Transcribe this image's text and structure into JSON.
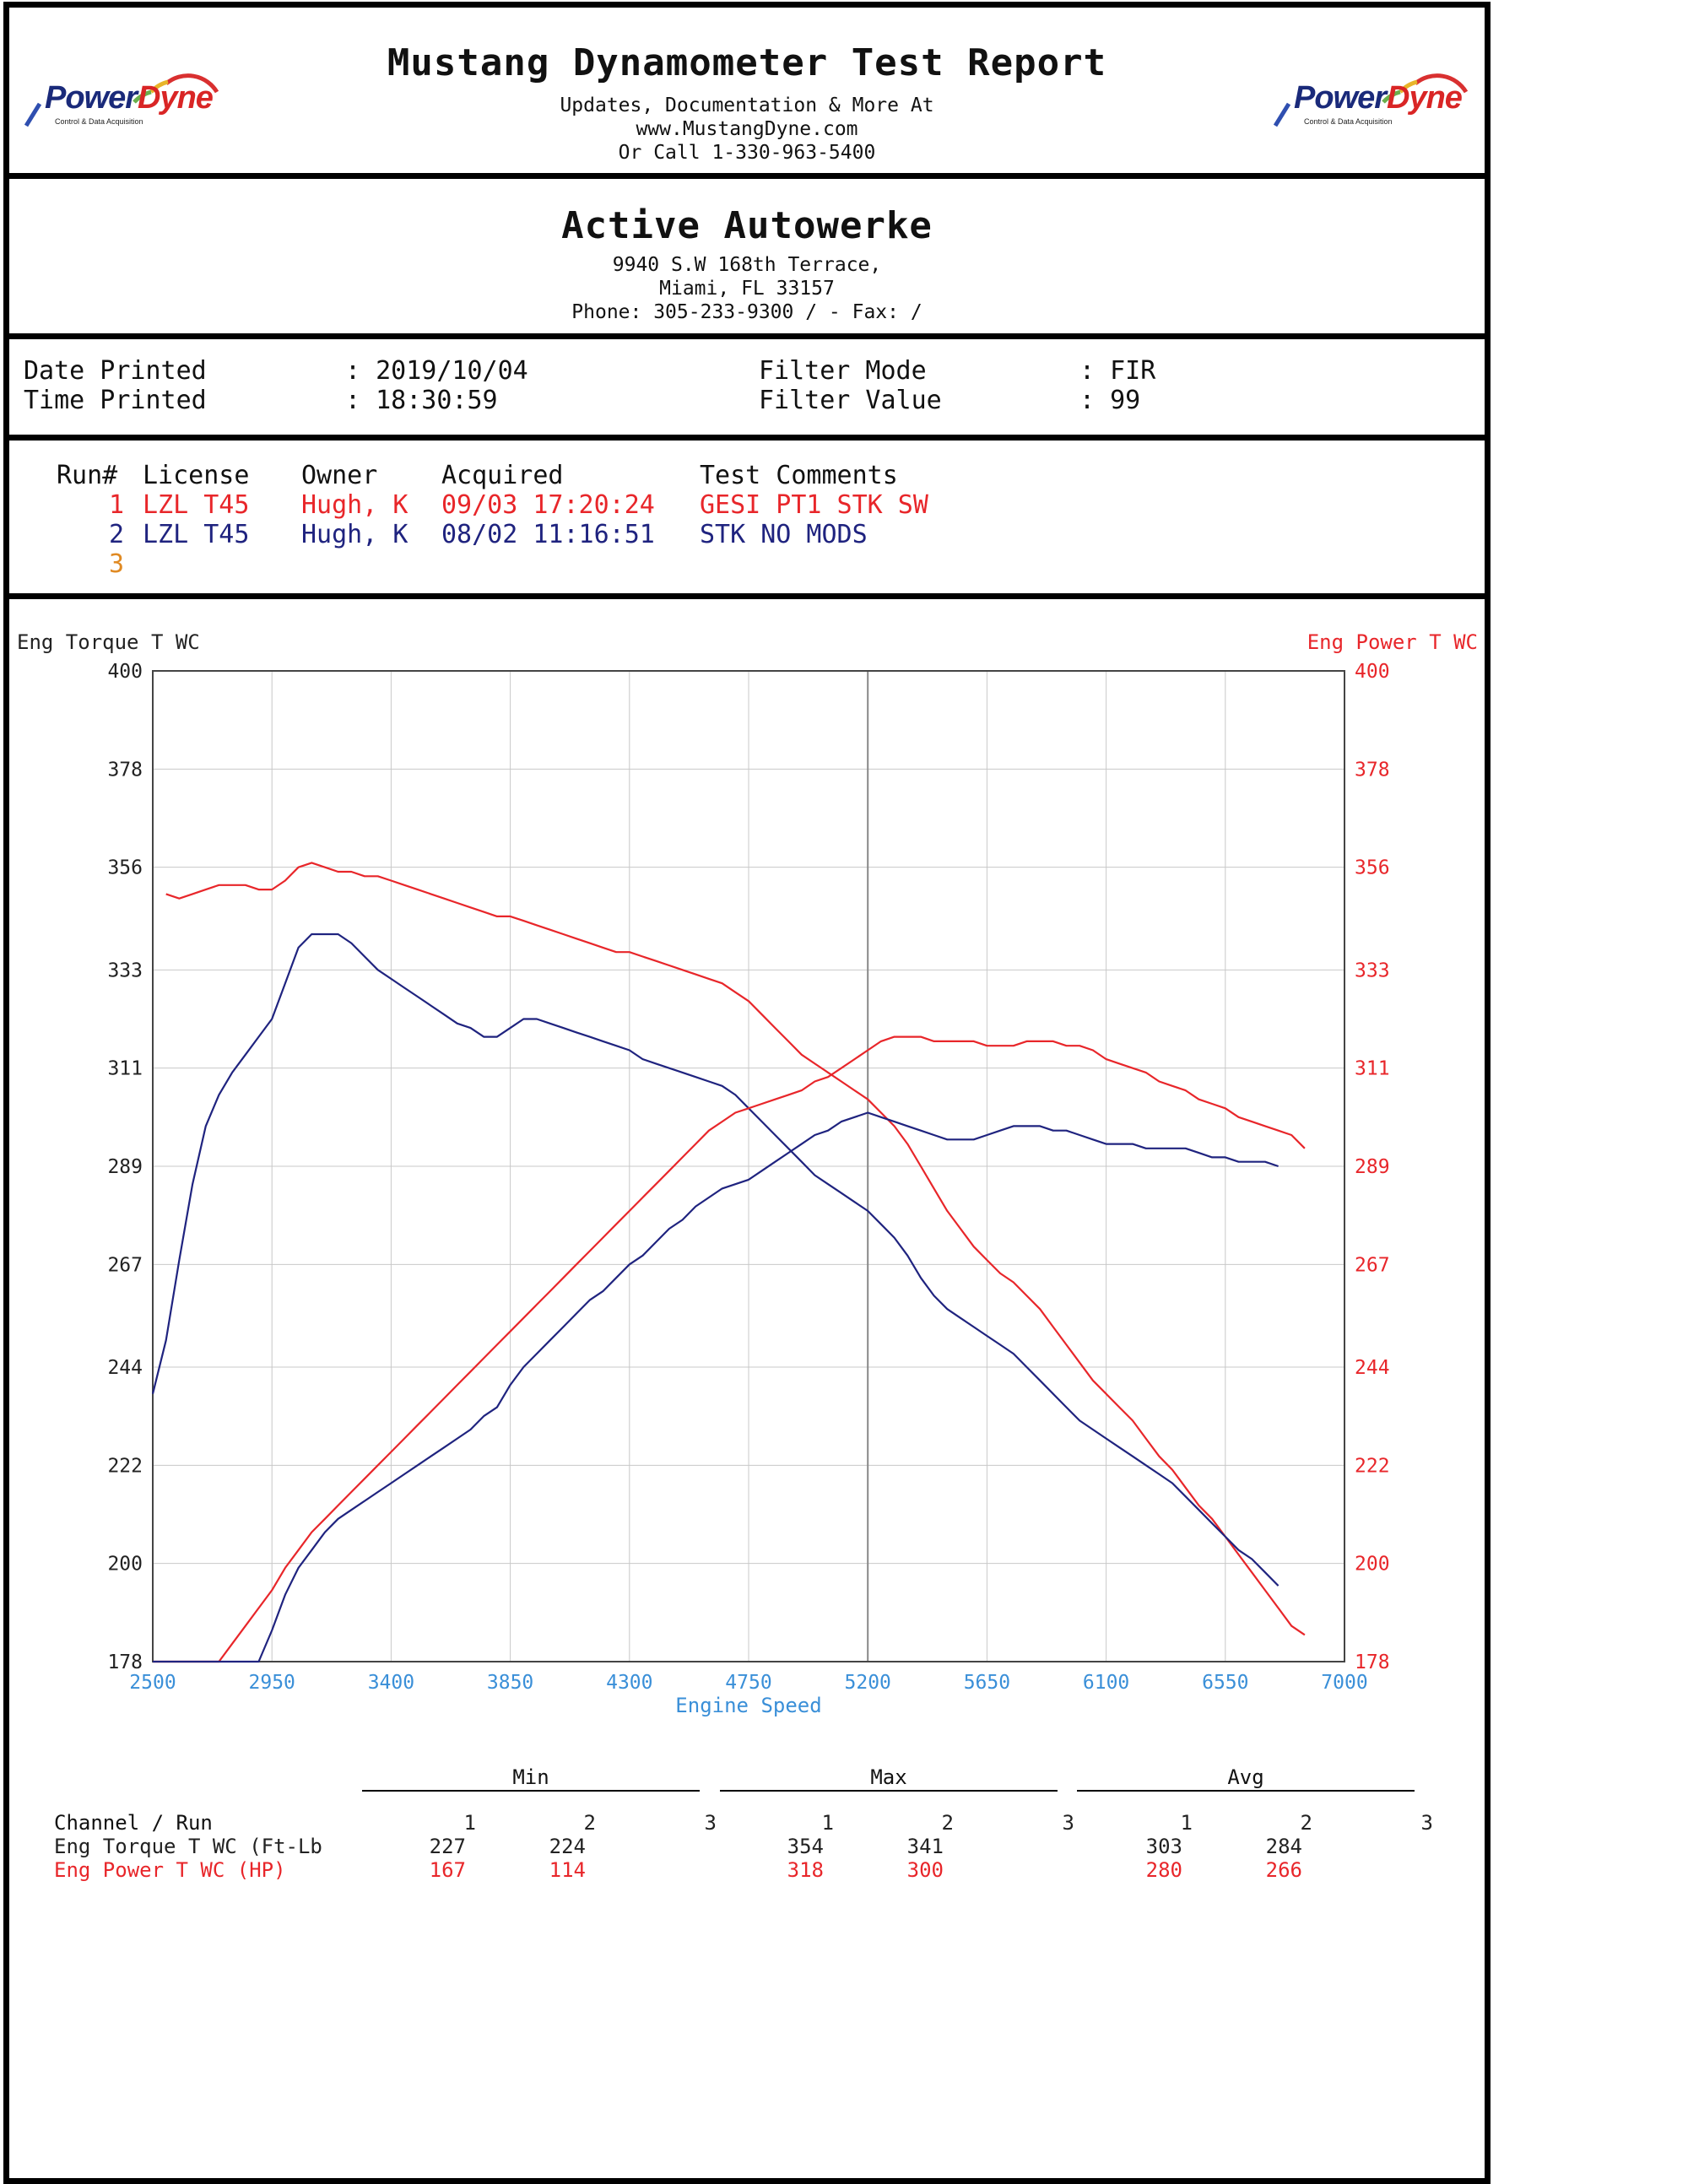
{
  "header": {
    "title": "Mustang Dynamometer Test Report",
    "line1": "Updates, Documentation & More At",
    "line2": "www.MustangDyne.com",
    "line3": "Or Call 1-330-963-5400",
    "logo_text_left": "Power",
    "logo_text_right": "Dyne",
    "logo_sub": "Control & Data Acquisition"
  },
  "shop": {
    "name": "Active Autowerke",
    "address1": "9940 S.W 168th Terrace,",
    "address2": "Miami, FL  33157",
    "phone": "Phone: 305-233-9300 /  - Fax:  /"
  },
  "print_info": {
    "date_label": "Date Printed",
    "date_value": ": 2019/10/04",
    "time_label": "Time Printed",
    "time_value": ": 18:30:59",
    "filter_mode_label": "Filter Mode",
    "filter_mode_value": ": FIR",
    "filter_value_label": "Filter Value",
    "filter_value_value": ": 99"
  },
  "runs": {
    "headers": [
      "Run#",
      "License",
      "Owner",
      "Acquired",
      "Test Comments"
    ],
    "rows": [
      {
        "num": "1",
        "license": "LZL T45",
        "owner": "Hugh, K",
        "acquired": "09/03 17:20:24",
        "comment": "GESI PT1 STK SW",
        "color": "#e8262a"
      },
      {
        "num": "2",
        "license": "LZL T45",
        "owner": "Hugh, K",
        "acquired": "08/02 11:16:51",
        "comment": "STK NO MODS",
        "color": "#1f237f"
      },
      {
        "num": "3",
        "license": "",
        "owner": "",
        "acquired": "",
        "comment": "",
        "color": "#e08a23"
      }
    ]
  },
  "chart_data": {
    "type": "line",
    "xlabel": "Engine Speed",
    "ylabel_left": "Eng Torque T WC",
    "ylabel_right": "Eng Power T WC",
    "xlim": [
      2500,
      7000
    ],
    "ylim": [
      178,
      400
    ],
    "x_ticks": [
      2500,
      2950,
      3400,
      3850,
      4300,
      4750,
      5200,
      5650,
      6100,
      6550,
      7000
    ],
    "y_ticks": [
      178,
      200,
      222,
      244,
      267,
      289,
      311,
      333,
      356,
      378,
      400
    ],
    "grid": true,
    "colors": {
      "run1": "#e8262a",
      "run2": "#1f237f",
      "left_axis": "#222222",
      "right_axis": "#e8262a",
      "x_axis": "#3a8fd8"
    },
    "series": [
      {
        "run": "1",
        "channel": "Eng Torque T WC",
        "color": "#e8262a",
        "x": [
          2550,
          2600,
          2650,
          2700,
          2750,
          2800,
          2850,
          2900,
          2950,
          3000,
          3050,
          3100,
          3150,
          3200,
          3250,
          3300,
          3350,
          3400,
          3450,
          3500,
          3550,
          3600,
          3650,
          3700,
          3750,
          3800,
          3850,
          3900,
          3950,
          4000,
          4050,
          4100,
          4150,
          4200,
          4250,
          4300,
          4350,
          4400,
          4450,
          4500,
          4550,
          4600,
          4650,
          4700,
          4750,
          4800,
          4850,
          4900,
          4950,
          5000,
          5050,
          5100,
          5150,
          5200,
          5250,
          5300,
          5350,
          5400,
          5450,
          5500,
          5550,
          5600,
          5650,
          5700,
          5750,
          5800,
          5850,
          5900,
          5950,
          6000,
          6050,
          6100,
          6150,
          6200,
          6250,
          6300,
          6350,
          6400,
          6450,
          6500,
          6550,
          6600,
          6650,
          6700,
          6750,
          6800,
          6850
        ],
        "y": [
          350,
          349,
          350,
          351,
          352,
          352,
          352,
          351,
          351,
          353,
          356,
          357,
          356,
          355,
          355,
          354,
          354,
          353,
          352,
          351,
          350,
          349,
          348,
          347,
          346,
          345,
          345,
          344,
          343,
          342,
          341,
          340,
          339,
          338,
          337,
          337,
          336,
          335,
          334,
          333,
          332,
          331,
          330,
          328,
          326,
          323,
          320,
          317,
          314,
          312,
          310,
          308,
          306,
          304,
          301,
          298,
          294,
          289,
          284,
          279,
          275,
          271,
          268,
          265,
          263,
          260,
          257,
          253,
          249,
          245,
          241,
          238,
          235,
          232,
          228,
          224,
          221,
          217,
          213,
          210,
          206,
          202,
          198,
          194,
          190,
          186,
          184
        ],
        "y_scaled_note_removed": true
      },
      {
        "run": "2",
        "channel": "Eng Torque T WC",
        "color": "#1f237f",
        "x": [
          2500,
          2550,
          2600,
          2650,
          2700,
          2750,
          2800,
          2850,
          2900,
          2950,
          3000,
          3050,
          3100,
          3150,
          3200,
          3250,
          3300,
          3350,
          3400,
          3450,
          3500,
          3550,
          3600,
          3650,
          3700,
          3750,
          3800,
          3850,
          3900,
          3950,
          4000,
          4050,
          4100,
          4150,
          4200,
          4250,
          4300,
          4350,
          4400,
          4450,
          4500,
          4550,
          4600,
          4650,
          4700,
          4750,
          4800,
          4850,
          4900,
          4950,
          5000,
          5050,
          5100,
          5150,
          5200,
          5250,
          5300,
          5350,
          5400,
          5450,
          5500,
          5550,
          5600,
          5650,
          5700,
          5750,
          5800,
          5850,
          5900,
          5950,
          6000,
          6050,
          6100,
          6150,
          6200,
          6250,
          6300,
          6350,
          6400,
          6450,
          6500,
          6550,
          6600,
          6650,
          6700,
          6750
        ],
        "y": [
          238,
          250,
          268,
          285,
          298,
          305,
          310,
          314,
          318,
          322,
          330,
          338,
          341,
          341,
          341,
          339,
          336,
          333,
          331,
          329,
          327,
          325,
          323,
          321,
          320,
          318,
          318,
          320,
          322,
          322,
          321,
          320,
          319,
          318,
          317,
          316,
          315,
          313,
          312,
          311,
          310,
          309,
          308,
          307,
          305,
          302,
          299,
          296,
          293,
          290,
          287,
          285,
          283,
          281,
          279,
          276,
          273,
          269,
          264,
          260,
          257,
          255,
          253,
          251,
          249,
          247,
          244,
          241,
          238,
          235,
          232,
          230,
          228,
          226,
          224,
          222,
          220,
          218,
          215,
          212,
          209,
          206,
          203,
          201,
          198,
          195
        ],
        "y_scaled_note_removed": true
      },
      {
        "run": "1",
        "channel": "Eng Power T WC",
        "color": "#e8262a",
        "x": [
          2500,
          2600,
          2700,
          2750,
          2800,
          2850,
          2900,
          2950,
          3000,
          3050,
          3100,
          3150,
          3200,
          3250,
          3300,
          3350,
          3400,
          3450,
          3500,
          3550,
          3600,
          3650,
          3700,
          3750,
          3800,
          3850,
          3900,
          3950,
          4000,
          4050,
          4100,
          4150,
          4200,
          4250,
          4300,
          4350,
          4400,
          4450,
          4500,
          4550,
          4600,
          4650,
          4700,
          4750,
          4800,
          4850,
          4900,
          4950,
          5000,
          5050,
          5100,
          5150,
          5200,
          5250,
          5300,
          5350,
          5400,
          5450,
          5500,
          5550,
          5600,
          5650,
          5700,
          5750,
          5800,
          5850,
          5900,
          5950,
          6000,
          6050,
          6100,
          6150,
          6200,
          6250,
          6300,
          6350,
          6400,
          6450,
          6500,
          6550,
          6600,
          6650,
          6700,
          6750,
          6800,
          6850
        ],
        "y": [
          178,
          178,
          178,
          178,
          182,
          186,
          190,
          194,
          199,
          203,
          207,
          210,
          213,
          216,
          219,
          222,
          225,
          228,
          231,
          234,
          237,
          240,
          243,
          246,
          249,
          252,
          255,
          258,
          261,
          264,
          267,
          270,
          273,
          276,
          279,
          282,
          285,
          288,
          291,
          294,
          297,
          299,
          301,
          302,
          303,
          304,
          305,
          306,
          308,
          309,
          311,
          313,
          315,
          317,
          318,
          318,
          318,
          317,
          317,
          317,
          317,
          316,
          316,
          316,
          317,
          317,
          317,
          316,
          316,
          315,
          313,
          312,
          311,
          310,
          308,
          307,
          306,
          304,
          303,
          302,
          300,
          299,
          298,
          297,
          296,
          293
        ],
        "y_scaled_note_removed": true
      },
      {
        "run": "2",
        "channel": "Eng Power T WC",
        "color": "#1f237f",
        "x": [
          2500,
          2900,
          2950,
          3000,
          3050,
          3100,
          3150,
          3200,
          3250,
          3300,
          3350,
          3400,
          3450,
          3500,
          3550,
          3600,
          3650,
          3700,
          3750,
          3800,
          3850,
          3900,
          3950,
          4000,
          4050,
          4100,
          4150,
          4200,
          4250,
          4300,
          4350,
          4400,
          4450,
          4500,
          4550,
          4600,
          4650,
          4700,
          4750,
          4800,
          4850,
          4900,
          4950,
          5000,
          5050,
          5100,
          5150,
          5200,
          5250,
          5300,
          5350,
          5400,
          5450,
          5500,
          5550,
          5600,
          5650,
          5700,
          5750,
          5800,
          5850,
          5900,
          5950,
          6000,
          6050,
          6100,
          6150,
          6200,
          6250,
          6300,
          6350,
          6400,
          6450,
          6500,
          6550,
          6600,
          6650,
          6700,
          6750
        ],
        "y": [
          178,
          178,
          185,
          193,
          199,
          203,
          207,
          210,
          212,
          214,
          216,
          218,
          220,
          222,
          224,
          226,
          228,
          230,
          233,
          235,
          240,
          244,
          247,
          250,
          253,
          256,
          259,
          261,
          264,
          267,
          269,
          272,
          275,
          277,
          280,
          282,
          284,
          285,
          286,
          288,
          290,
          292,
          294,
          296,
          297,
          299,
          300,
          301,
          300,
          299,
          298,
          297,
          296,
          295,
          295,
          295,
          296,
          297,
          298,
          298,
          298,
          297,
          297,
          296,
          295,
          294,
          294,
          294,
          293,
          293,
          293,
          293,
          292,
          291,
          291,
          290,
          290,
          290,
          289
        ]
      }
    ]
  },
  "stats": {
    "groups": [
      "Min",
      "Max",
      "Avg"
    ],
    "header_label": "Channel / Run",
    "run_cols": [
      "1",
      "2",
      "3"
    ],
    "rows": [
      {
        "label": "Eng Torque T WC (Ft-Lb",
        "color": "#222222",
        "min": [
          "227",
          "224",
          ""
        ],
        "max": [
          "354",
          "341",
          ""
        ],
        "avg": [
          "303",
          "284",
          ""
        ]
      },
      {
        "label": "Eng Power T WC (HP)",
        "color": "#e8262a",
        "min": [
          "167",
          "114",
          ""
        ],
        "max": [
          "318",
          "300",
          ""
        ],
        "avg": [
          "280",
          "266",
          ""
        ]
      }
    ]
  }
}
